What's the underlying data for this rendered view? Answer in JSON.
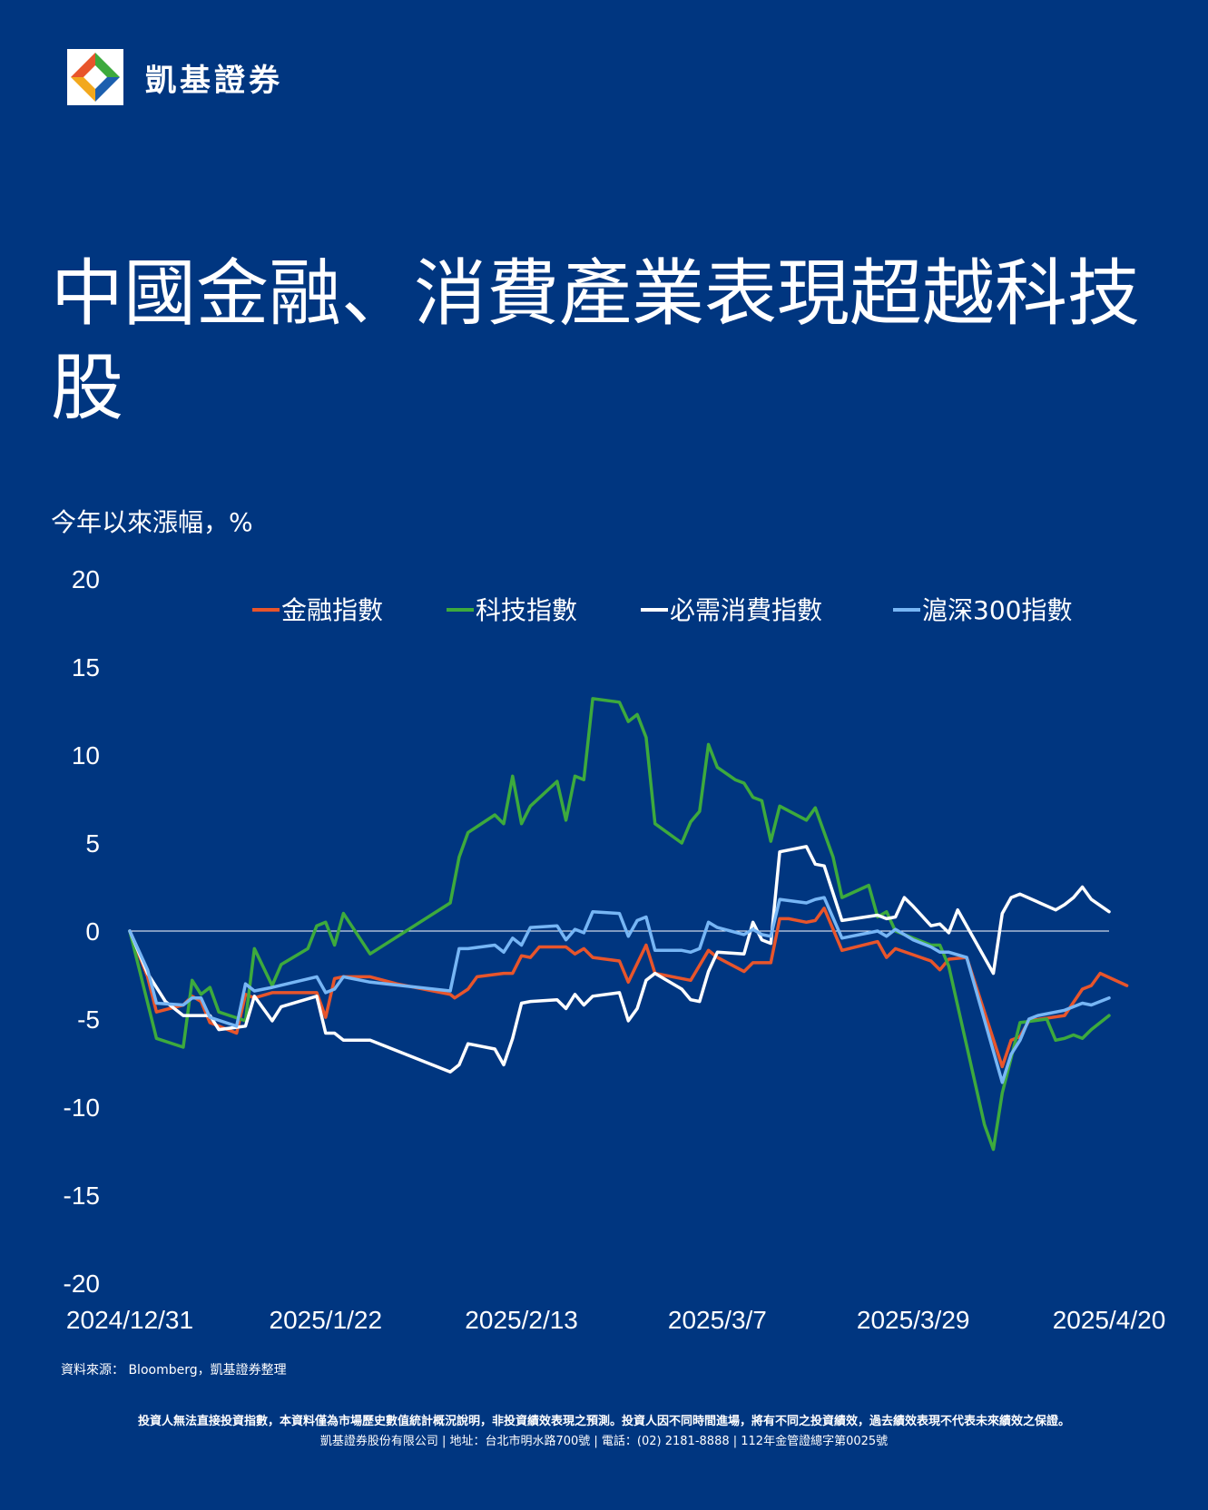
{
  "brand": {
    "name": "凱基證券"
  },
  "title": "中國金融、消費產業表現超越科技股",
  "chart_data": {
    "type": "line",
    "ylabel": "今年以來漲幅，%",
    "ylim": [
      -20,
      20
    ],
    "yticks": [
      20,
      15,
      10,
      5,
      0,
      -5,
      -10,
      -15,
      -20
    ],
    "xlim": [
      0,
      110
    ],
    "xtick_labels": [
      "2024/12/31",
      "2025/1/22",
      "2025/2/13",
      "2025/3/7",
      "2025/3/29",
      "2025/4/20"
    ],
    "xtick_positions": [
      0,
      22,
      44,
      66,
      88,
      110
    ],
    "zero_line": true,
    "legend_position": "top",
    "series": [
      {
        "name": "金融指數",
        "color": "#e8552b",
        "points": [
          [
            0,
            0
          ],
          [
            2,
            -2.6
          ],
          [
            3,
            -4.6
          ],
          [
            6,
            -4.2
          ],
          [
            7,
            -3.7
          ],
          [
            8,
            -4
          ],
          [
            9,
            -5.2
          ],
          [
            12,
            -5.8
          ],
          [
            13,
            -3.6
          ],
          [
            14,
            -3.8
          ],
          [
            16,
            -3.5
          ],
          [
            21,
            -3.5
          ],
          [
            22,
            -4.9
          ],
          [
            23,
            -2.7
          ],
          [
            24,
            -2.6
          ],
          [
            27,
            -2.6
          ],
          [
            30,
            -3
          ],
          [
            36,
            -3.6
          ],
          [
            36.5,
            -3.8
          ],
          [
            38,
            -3.3
          ],
          [
            39,
            -2.6
          ],
          [
            42,
            -2.4
          ],
          [
            43,
            -2.4
          ],
          [
            44,
            -1.4
          ],
          [
            45,
            -1.5
          ],
          [
            46,
            -0.9
          ],
          [
            49,
            -0.9
          ],
          [
            50,
            -1.3
          ],
          [
            51,
            -1
          ],
          [
            52,
            -1.5
          ],
          [
            55,
            -1.7
          ],
          [
            56,
            -2.9
          ],
          [
            58,
            -0.8
          ],
          [
            59,
            -2.4
          ],
          [
            63,
            -2.8
          ],
          [
            65,
            -1.1
          ],
          [
            66,
            -1.5
          ],
          [
            69,
            -2.3
          ],
          [
            70,
            -1.8
          ],
          [
            72,
            -1.8
          ],
          [
            73,
            0.7
          ],
          [
            74,
            0.7
          ],
          [
            76,
            0.5
          ],
          [
            77,
            0.6
          ],
          [
            78,
            1.3
          ],
          [
            80,
            -1.1
          ],
          [
            84,
            -0.6
          ],
          [
            85,
            -1.5
          ],
          [
            86,
            -1
          ],
          [
            90,
            -1.7
          ],
          [
            91,
            -2.2
          ],
          [
            92,
            -1.6
          ],
          [
            94,
            -1.5
          ],
          [
            98,
            -7.7
          ],
          [
            99,
            -6.2
          ],
          [
            100,
            -6
          ],
          [
            101,
            -5.1
          ],
          [
            105,
            -4.8
          ],
          [
            107,
            -3.3
          ],
          [
            108,
            -3.1
          ],
          [
            109,
            -2.4
          ],
          [
            112,
            -3.1
          ]
        ]
      },
      {
        "name": "科技指數",
        "color": "#3daa3d",
        "points": [
          [
            0,
            0
          ],
          [
            3,
            -6.1
          ],
          [
            6,
            -6.6
          ],
          [
            7,
            -2.8
          ],
          [
            8,
            -3.6
          ],
          [
            9,
            -3.2
          ],
          [
            10,
            -4.6
          ],
          [
            13,
            -5.1
          ],
          [
            14,
            -1
          ],
          [
            16,
            -3.1
          ],
          [
            17,
            -1.9
          ],
          [
            20,
            -1
          ],
          [
            21,
            0.3
          ],
          [
            22,
            0.5
          ],
          [
            23,
            -0.8
          ],
          [
            24,
            1
          ],
          [
            27,
            -1.3
          ],
          [
            36,
            1.6
          ],
          [
            37,
            4.2
          ],
          [
            38,
            5.6
          ],
          [
            41,
            6.6
          ],
          [
            42,
            6.1
          ],
          [
            43,
            8.8
          ],
          [
            44,
            6.1
          ],
          [
            45,
            7.1
          ],
          [
            48,
            8.5
          ],
          [
            49,
            6.3
          ],
          [
            50,
            8.8
          ],
          [
            51,
            8.6
          ],
          [
            52,
            13.2
          ],
          [
            55,
            13
          ],
          [
            56,
            11.9
          ],
          [
            57,
            12.3
          ],
          [
            58,
            11
          ],
          [
            59,
            6.1
          ],
          [
            62,
            5
          ],
          [
            63,
            6.2
          ],
          [
            64,
            6.8
          ],
          [
            65,
            10.6
          ],
          [
            66,
            9.3
          ],
          [
            68,
            8.6
          ],
          [
            69,
            8.4
          ],
          [
            70,
            7.6
          ],
          [
            71,
            7.4
          ],
          [
            72,
            5.1
          ],
          [
            73,
            7.1
          ],
          [
            76,
            6.3
          ],
          [
            77,
            7
          ],
          [
            79,
            4.2
          ],
          [
            80,
            1.9
          ],
          [
            83,
            2.6
          ],
          [
            84,
            0.8
          ],
          [
            85,
            1.1
          ],
          [
            86,
            0
          ],
          [
            89,
            -0.6
          ],
          [
            90,
            -0.8
          ],
          [
            91,
            -0.8
          ],
          [
            92,
            -2
          ],
          [
            96,
            -11
          ],
          [
            97,
            -12.4
          ],
          [
            98,
            -9.2
          ],
          [
            100,
            -5.2
          ],
          [
            103,
            -5
          ],
          [
            104,
            -6.2
          ],
          [
            105,
            -6.1
          ],
          [
            106,
            -5.9
          ],
          [
            107,
            -6.1
          ],
          [
            108,
            -5.6
          ],
          [
            110,
            -4.8
          ]
        ]
      },
      {
        "name": "必需消費指數",
        "color": "#ffffff",
        "points": [
          [
            0,
            0
          ],
          [
            2,
            -2.4
          ],
          [
            4,
            -4
          ],
          [
            6,
            -4.8
          ],
          [
            9,
            -4.8
          ],
          [
            10,
            -5.6
          ],
          [
            13,
            -5.4
          ],
          [
            14,
            -3.7
          ],
          [
            16,
            -5.1
          ],
          [
            17,
            -4.3
          ],
          [
            21,
            -3.7
          ],
          [
            22,
            -5.8
          ],
          [
            23,
            -5.8
          ],
          [
            24,
            -6.2
          ],
          [
            27,
            -6.2
          ],
          [
            36,
            -8
          ],
          [
            37,
            -7.6
          ],
          [
            38,
            -6.4
          ],
          [
            41,
            -6.7
          ],
          [
            42,
            -7.6
          ],
          [
            43,
            -6.1
          ],
          [
            44,
            -4.1
          ],
          [
            45,
            -4
          ],
          [
            48,
            -3.9
          ],
          [
            49,
            -4.4
          ],
          [
            50,
            -3.6
          ],
          [
            51,
            -4.2
          ],
          [
            52,
            -3.7
          ],
          [
            55,
            -3.5
          ],
          [
            56,
            -5.1
          ],
          [
            57,
            -4.4
          ],
          [
            58,
            -2.8
          ],
          [
            59,
            -2.4
          ],
          [
            62,
            -3.3
          ],
          [
            63,
            -3.9
          ],
          [
            64,
            -4
          ],
          [
            65,
            -2.3
          ],
          [
            66,
            -1.2
          ],
          [
            69,
            -1.3
          ],
          [
            70,
            0.5
          ],
          [
            71,
            -0.5
          ],
          [
            72,
            -0.7
          ],
          [
            73,
            4.5
          ],
          [
            76,
            4.8
          ],
          [
            77,
            3.8
          ],
          [
            78,
            3.7
          ],
          [
            80,
            0.6
          ],
          [
            84,
            0.9
          ],
          [
            85,
            0.7
          ],
          [
            86,
            0.8
          ],
          [
            87,
            1.9
          ],
          [
            88,
            1.4
          ],
          [
            90,
            0.3
          ],
          [
            91,
            0.4
          ],
          [
            92,
            -0.1
          ],
          [
            93,
            1.2
          ],
          [
            97,
            -2.4
          ],
          [
            98,
            1
          ],
          [
            99,
            1.9
          ],
          [
            100,
            2.1
          ],
          [
            104,
            1.2
          ],
          [
            105,
            1.5
          ],
          [
            106,
            1.9
          ],
          [
            107,
            2.5
          ],
          [
            108,
            1.8
          ],
          [
            110,
            1.1
          ]
        ]
      },
      {
        "name": "滬深300指數",
        "color": "#77b6f5",
        "points": [
          [
            0,
            0
          ],
          [
            2,
            -2.2
          ],
          [
            3,
            -4.1
          ],
          [
            6,
            -4.2
          ],
          [
            7,
            -3.8
          ],
          [
            8,
            -3.8
          ],
          [
            9,
            -4.9
          ],
          [
            12,
            -5.4
          ],
          [
            13,
            -3
          ],
          [
            14,
            -3.4
          ],
          [
            16,
            -3.2
          ],
          [
            21,
            -2.6
          ],
          [
            22,
            -3.5
          ],
          [
            23,
            -3.3
          ],
          [
            24,
            -2.6
          ],
          [
            27,
            -2.9
          ],
          [
            36,
            -3.4
          ],
          [
            37,
            -1
          ],
          [
            38,
            -1
          ],
          [
            41,
            -0.8
          ],
          [
            42,
            -1.2
          ],
          [
            43,
            -0.4
          ],
          [
            44,
            -0.8
          ],
          [
            45,
            0.2
          ],
          [
            48,
            0.3
          ],
          [
            49,
            -0.5
          ],
          [
            50,
            0.1
          ],
          [
            51,
            -0.1
          ],
          [
            52,
            1.1
          ],
          [
            55,
            1
          ],
          [
            56,
            -0.3
          ],
          [
            57,
            0.6
          ],
          [
            58,
            0.8
          ],
          [
            59,
            -1.1
          ],
          [
            62,
            -1.1
          ],
          [
            63,
            -1.2
          ],
          [
            64,
            -1
          ],
          [
            65,
            0.5
          ],
          [
            66,
            0.2
          ],
          [
            69,
            -0.2
          ],
          [
            70,
            0.1
          ],
          [
            71,
            -0.2
          ],
          [
            72,
            -0.3
          ],
          [
            73,
            1.8
          ],
          [
            76,
            1.6
          ],
          [
            77,
            1.8
          ],
          [
            78,
            1.9
          ],
          [
            80,
            -0.4
          ],
          [
            84,
            0
          ],
          [
            85,
            -0.3
          ],
          [
            86,
            0.1
          ],
          [
            87,
            -0.2
          ],
          [
            88,
            -0.5
          ],
          [
            90,
            -0.9
          ],
          [
            91,
            -1.2
          ],
          [
            92,
            -1.2
          ],
          [
            94,
            -1.5
          ],
          [
            98,
            -8.6
          ],
          [
            99,
            -7
          ],
          [
            100,
            -6.2
          ],
          [
            101,
            -5
          ],
          [
            102,
            -4.8
          ],
          [
            105,
            -4.5
          ],
          [
            107,
            -4.1
          ],
          [
            108,
            -4.2
          ],
          [
            110,
            -3.8
          ]
        ]
      }
    ]
  },
  "source": "資料來源： Bloomberg，凱基證券整理",
  "disclaimer": {
    "line1": "投資人無法直接投資指數，本資料僅為市場歷史數值統計概況說明，非投資績效表現之預測。投資人因不同時間進場，將有不同之投資績效，過去績效表現不代表未來績效之保證。",
    "line2": "凱基證券股份有限公司 | 地址：台北市明水路700號 | 電話：(02) 2181-8888 | 112年金管證總字第0025號"
  }
}
